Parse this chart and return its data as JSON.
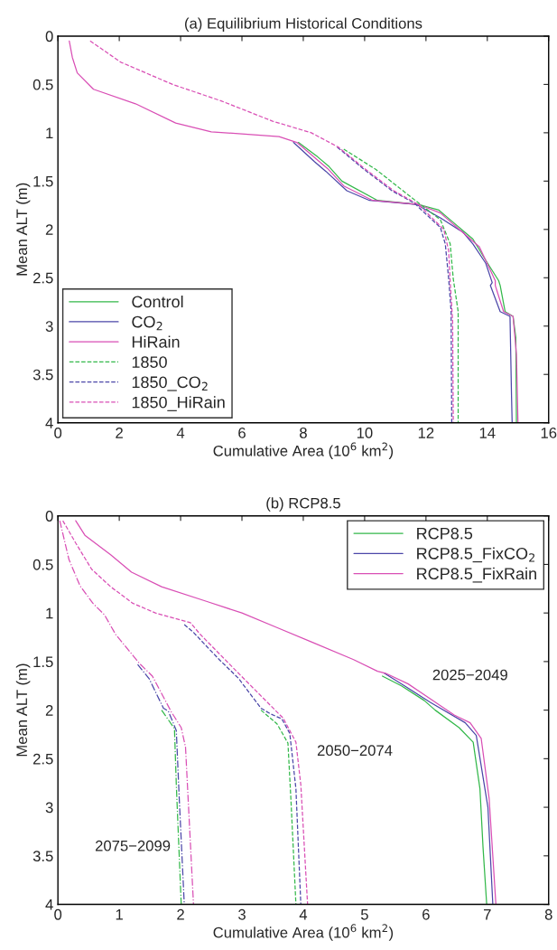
{
  "chart_data": [
    {
      "type": "line",
      "title": "(a) Equilibrium Historical Conditions",
      "xlabel": "Cumulative Area (10$^{6}$ km$^{2}$)",
      "ylabel": "Mean ALT (m)",
      "xlim": [
        0,
        16
      ],
      "xticks": [
        0,
        2,
        4,
        6,
        8,
        10,
        12,
        14,
        16
      ],
      "ylim": [
        4,
        0
      ],
      "yticks": [
        0,
        0.5,
        1,
        1.5,
        2,
        2.5,
        3,
        3.5,
        4
      ],
      "grid": false,
      "legend": "bottom left",
      "series": [
        {
          "name": "Control",
          "color": "#33b84a",
          "line_style": "solid",
          "x": [
            7.84,
            8.47,
            8.84,
            9.26,
            10.42,
            11.74,
            12.42,
            12.79,
            13.53,
            13.95,
            14.37,
            14.42,
            14.58,
            14.84,
            14.93,
            14.95
          ],
          "values": [
            1.1,
            1.25,
            1.35,
            1.5,
            1.7,
            1.74,
            1.8,
            1.9,
            2.1,
            2.32,
            2.53,
            2.58,
            2.85,
            2.9,
            3.12,
            4
          ]
        },
        {
          "name": "CO$_{2}$",
          "color": "#4b47a8",
          "line_style": "solid",
          "x": [
            7.68,
            8.37,
            8.74,
            9.42,
            10.16,
            11.68,
            12.47,
            13.21,
            13.53,
            13.95,
            14.16,
            14.1,
            14.42,
            14.74,
            14.79,
            14.81
          ],
          "values": [
            1.1,
            1.3,
            1.4,
            1.6,
            1.7,
            1.74,
            1.88,
            2.03,
            2.15,
            2.35,
            2.55,
            2.58,
            2.85,
            2.9,
            3.73,
            4
          ]
        },
        {
          "name": "HiRain",
          "color": "#d94fb5",
          "line_style": "solid",
          "x": [
            0.37,
            0.47,
            0.63,
            1.16,
            2.53,
            3.84,
            5.0,
            7.21,
            7.79,
            8.79,
            9.32,
            10.26,
            11.74,
            12.47,
            13.74,
            14.26,
            14.26,
            14.53,
            14.84,
            14.95,
            15.0
          ],
          "values": [
            0.05,
            0.22,
            0.38,
            0.55,
            0.7,
            0.9,
            0.99,
            1.04,
            1.1,
            1.37,
            1.55,
            1.7,
            1.74,
            1.83,
            2.18,
            2.53,
            2.58,
            2.85,
            2.9,
            3.29,
            4
          ]
        },
        {
          "name": "1850",
          "color": "#33b84a",
          "line_style": "dashed",
          "x": [
            9.32,
            10.37,
            11.53,
            12.47,
            12.79,
            12.89,
            13.05,
            13.05
          ],
          "values": [
            1.17,
            1.38,
            1.67,
            1.9,
            2.15,
            2.51,
            2.85,
            4
          ]
        },
        {
          "name": "1850_CO$_{2}$",
          "color": "#4b47a8",
          "line_style": "dashed",
          "x": [
            9.11,
            9.95,
            10.89,
            11.63,
            11.79,
            12.47,
            12.63,
            12.74,
            12.82,
            12.84
          ],
          "values": [
            1.15,
            1.37,
            1.6,
            1.73,
            1.78,
            1.98,
            2.15,
            2.51,
            2.85,
            4
          ]
        },
        {
          "name": "1850_HiRain",
          "color": "#d94fb5",
          "line_style": "dashed",
          "x": [
            1.05,
            2.05,
            3.74,
            5.32,
            7.0,
            8.26,
            9.15,
            10.0,
            10.95,
            11.68,
            11.84,
            12.58,
            12.74,
            12.79,
            12.87,
            12.89
          ],
          "values": [
            0.05,
            0.27,
            0.5,
            0.67,
            0.88,
            1.0,
            1.15,
            1.37,
            1.6,
            1.73,
            1.77,
            2.0,
            2.22,
            2.54,
            2.95,
            4
          ]
        }
      ]
    },
    {
      "type": "line",
      "title": "(b) RCP8.5",
      "xlabel": "Cumulative Area (10$^{6}$ km$^{2}$)",
      "ylabel": "Mean ALT (m)",
      "xlim": [
        0,
        8
      ],
      "xticks": [
        0,
        1,
        2,
        3,
        4,
        5,
        6,
        7,
        8
      ],
      "ylim": [
        4,
        0
      ],
      "yticks": [
        0,
        0.5,
        1,
        1.5,
        2,
        2.5,
        3,
        3.5,
        4
      ],
      "grid": false,
      "legend": "top right",
      "annotations": [
        "2025−2049",
        "2050−2074",
        "2075−2099"
      ],
      "series": [
        {
          "name": "RCP8.5",
          "color": "#33b84a",
          "line_style": "solid",
          "x": [
            5.29,
            5.6,
            5.97,
            6.15,
            6.54,
            6.77,
            6.88,
            6.93,
            6.99
          ],
          "values": [
            1.65,
            1.75,
            1.9,
            2.0,
            2.18,
            2.33,
            2.81,
            3.41,
            4
          ]
        },
        {
          "name": "RCP8.5_FixCO$_{2}$",
          "color": "#4b47a8",
          "line_style": "solid",
          "x": [
            5.32,
            5.65,
            6.07,
            6.64,
            6.82,
            7.01,
            7.09
          ],
          "values": [
            1.62,
            1.75,
            1.92,
            2.13,
            2.26,
            3.0,
            4
          ]
        },
        {
          "name": "RCP8.5_FixRain",
          "color": "#d94fb5",
          "line_style": "solid",
          "x": [
            0.29,
            0.44,
            0.86,
            1.2,
            1.69,
            2.42,
            3.0,
            3.57,
            4.14,
            4.82,
            5.21,
            5.34,
            5.71,
            6.46,
            6.72,
            6.9,
            7.03,
            7.14
          ],
          "values": [
            0.05,
            0.2,
            0.4,
            0.58,
            0.73,
            0.88,
            1.0,
            1.15,
            1.3,
            1.48,
            1.6,
            1.62,
            1.73,
            2.05,
            2.13,
            2.29,
            2.91,
            4
          ]
        },
        {
          "color": "#33b84a",
          "line_style": "dashed",
          "x": [
            3.31,
            3.57,
            3.75,
            3.8,
            3.88
          ],
          "values": [
            2.0,
            2.14,
            2.34,
            2.94,
            4
          ]
        },
        {
          "color": "#4b47a8",
          "line_style": "dashed",
          "x": [
            2.06,
            2.21,
            2.63,
            2.94,
            3.31,
            3.47,
            3.65,
            3.78,
            3.88,
            3.96
          ],
          "values": [
            1.12,
            1.2,
            1.48,
            1.67,
            1.98,
            2.04,
            2.09,
            2.24,
            2.81,
            4
          ]
        },
        {
          "color": "#d94fb5",
          "line_style": "dashed",
          "x": [
            0.08,
            0.29,
            0.55,
            0.86,
            1.22,
            1.59,
            2.16,
            2.32,
            2.99,
            3.62,
            3.67,
            3.88,
            3.96,
            4.07
          ],
          "values": [
            0.05,
            0.28,
            0.55,
            0.73,
            0.9,
            1.0,
            1.1,
            1.22,
            1.65,
            2.05,
            2.08,
            2.33,
            2.77,
            4
          ]
        },
        {
          "color": "#33b84a",
          "line_style": "dashdot",
          "x": [
            1.69,
            1.9,
            1.93,
            2.01
          ],
          "values": [
            2.0,
            2.19,
            2.77,
            4
          ]
        },
        {
          "color": "#4b47a8",
          "line_style": "dashdot",
          "x": [
            1.3,
            1.49,
            1.72,
            1.8,
            1.93,
            1.98,
            2.06
          ],
          "values": [
            1.53,
            1.68,
            1.98,
            2.01,
            2.21,
            2.94,
            4
          ]
        },
        {
          "color": "#d94fb5",
          "line_style": "dashdot",
          "x": [
            0.03,
            0.18,
            0.36,
            0.57,
            0.76,
            0.94,
            1.33,
            1.54,
            1.85,
            2.01,
            2.08,
            2.21
          ],
          "values": [
            0.05,
            0.45,
            0.72,
            0.9,
            1.02,
            1.22,
            1.52,
            1.65,
            2.02,
            2.18,
            2.38,
            4
          ]
        }
      ]
    }
  ]
}
